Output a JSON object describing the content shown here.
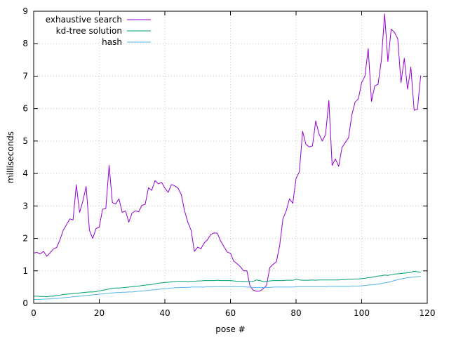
{
  "chart_data": {
    "type": "line",
    "title": "",
    "xlabel": "pose #",
    "ylabel": "milliseconds",
    "xlim": [
      0,
      120
    ],
    "ylim": [
      0,
      9
    ],
    "x_ticks": [
      "0",
      "20",
      "40",
      "60",
      "80",
      "100",
      "120"
    ],
    "y_ticks": [
      "0",
      "1",
      "2",
      "3",
      "4",
      "5",
      "6",
      "7",
      "8",
      "9"
    ],
    "grid": true,
    "legend_position": "top-left",
    "series": [
      {
        "name": "exhaustive search",
        "color": "#9400d3",
        "values": [
          1.55,
          1.57,
          1.52,
          1.6,
          1.45,
          1.55,
          1.67,
          1.72,
          1.95,
          2.25,
          2.42,
          2.6,
          2.57,
          3.65,
          2.8,
          3.15,
          3.6,
          2.25,
          2.0,
          2.3,
          2.35,
          2.9,
          2.92,
          4.25,
          3.1,
          3.06,
          3.22,
          2.8,
          2.85,
          2.5,
          2.78,
          2.85,
          2.82,
          3.02,
          3.05,
          3.56,
          3.48,
          3.78,
          3.68,
          3.73,
          3.55,
          3.42,
          3.66,
          3.62,
          3.55,
          3.35,
          2.85,
          2.5,
          2.25,
          1.6,
          1.73,
          1.68,
          1.86,
          1.96,
          2.12,
          2.17,
          2.16,
          1.92,
          1.75,
          1.58,
          1.54,
          1.3,
          1.22,
          1.13,
          1.0,
          1.0,
          0.52,
          0.4,
          0.37,
          0.38,
          0.45,
          0.55,
          1.1,
          1.2,
          1.28,
          1.78,
          2.6,
          2.85,
          3.22,
          3.08,
          3.85,
          4.05,
          5.3,
          4.9,
          4.82,
          4.85,
          5.62,
          5.22,
          5.0,
          5.2,
          6.25,
          4.25,
          4.45,
          4.22,
          4.8,
          4.95,
          5.1,
          5.8,
          6.2,
          6.3,
          6.8,
          7.0,
          7.85,
          6.22,
          6.7,
          6.75,
          7.48,
          8.92,
          7.45,
          8.45,
          8.35,
          8.15,
          6.8,
          7.55,
          6.6,
          7.28,
          5.95,
          5.97,
          7.02
        ],
        "endpoint_only_last": false
      },
      {
        "name": "kd-tree solution",
        "color": "#009e73",
        "values": [
          0.22,
          0.22,
          0.21,
          0.21,
          0.2,
          0.22,
          0.22,
          0.24,
          0.25,
          0.27,
          0.28,
          0.29,
          0.3,
          0.31,
          0.32,
          0.33,
          0.34,
          0.35,
          0.35,
          0.36,
          0.38,
          0.4,
          0.42,
          0.44,
          0.46,
          0.47,
          0.47,
          0.48,
          0.49,
          0.5,
          0.51,
          0.52,
          0.53,
          0.55,
          0.56,
          0.57,
          0.58,
          0.6,
          0.62,
          0.63,
          0.64,
          0.65,
          0.66,
          0.67,
          0.68,
          0.68,
          0.68,
          0.67,
          0.68,
          0.68,
          0.69,
          0.69,
          0.7,
          0.7,
          0.7,
          0.7,
          0.71,
          0.7,
          0.7,
          0.7,
          0.7,
          0.69,
          0.68,
          0.68,
          0.67,
          0.67,
          0.67,
          0.68,
          0.72,
          0.7,
          0.67,
          0.68,
          0.69,
          0.7,
          0.7,
          0.7,
          0.7,
          0.71,
          0.71,
          0.71,
          0.74,
          0.72,
          0.71,
          0.71,
          0.71,
          0.72,
          0.71,
          0.72,
          0.72,
          0.72,
          0.72,
          0.72,
          0.72,
          0.72,
          0.73,
          0.73,
          0.74,
          0.74,
          0.75,
          0.75,
          0.76,
          0.77,
          0.79,
          0.8,
          0.82,
          0.84,
          0.85,
          0.87,
          0.86,
          0.88,
          0.9,
          0.91,
          0.92,
          0.93,
          0.94,
          0.95,
          0.99,
          0.97,
          0.95
        ],
        "endpoint_only_last": false
      },
      {
        "name": "hash",
        "color": "#56b4e9",
        "values": [
          0.12,
          0.12,
          0.12,
          0.13,
          0.13,
          0.14,
          0.15,
          0.15,
          0.16,
          0.17,
          0.18,
          0.19,
          0.2,
          0.21,
          0.22,
          0.23,
          0.24,
          0.25,
          0.26,
          0.27,
          0.28,
          0.29,
          0.3,
          0.31,
          0.32,
          0.33,
          0.33,
          0.34,
          0.34,
          0.35,
          0.35,
          0.36,
          0.37,
          0.38,
          0.39,
          0.4,
          0.41,
          0.42,
          0.43,
          0.44,
          0.45,
          0.46,
          0.47,
          0.48,
          0.48,
          0.49,
          0.49,
          0.49,
          0.5,
          0.5,
          0.5,
          0.5,
          0.5,
          0.51,
          0.51,
          0.51,
          0.51,
          0.51,
          0.51,
          0.51,
          0.51,
          0.51,
          0.51,
          0.51,
          0.51,
          0.5,
          0.5,
          0.49,
          0.49,
          0.49,
          0.49,
          0.49,
          0.49,
          0.5,
          0.5,
          0.5,
          0.5,
          0.5,
          0.5,
          0.5,
          0.51,
          0.51,
          0.51,
          0.51,
          0.51,
          0.51,
          0.51,
          0.51,
          0.51,
          0.51,
          0.52,
          0.52,
          0.52,
          0.52,
          0.52,
          0.52,
          0.52,
          0.53,
          0.53,
          0.53,
          0.54,
          0.55,
          0.56,
          0.57,
          0.58,
          0.59,
          0.61,
          0.63,
          0.65,
          0.67,
          0.7,
          0.73,
          0.75,
          0.77,
          0.79,
          0.8,
          0.81,
          0.82,
          0.83
        ],
        "endpoint_only_last": false
      }
    ]
  }
}
